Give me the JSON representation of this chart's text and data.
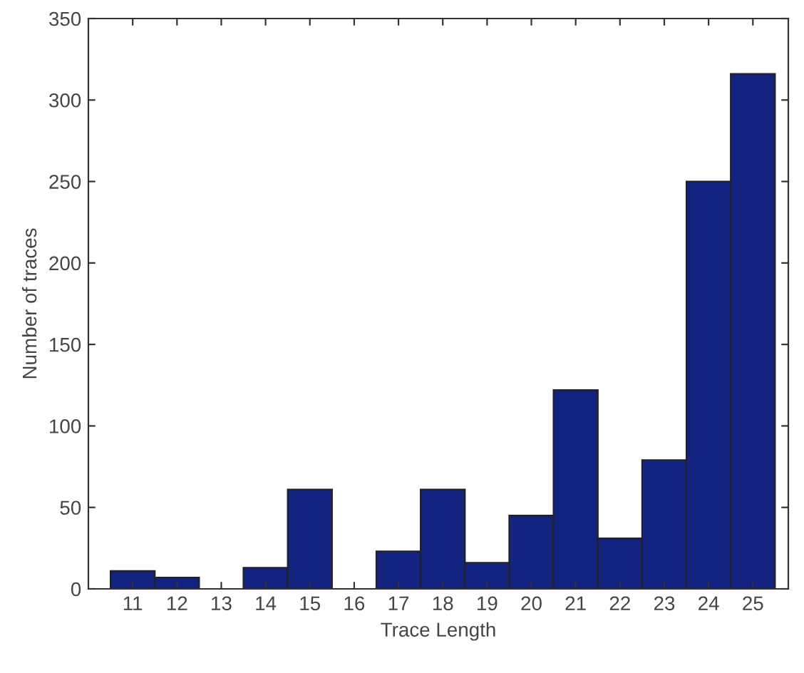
{
  "chart_data": {
    "type": "bar",
    "xlabel": "Trace Length",
    "ylabel": "Number of traces",
    "categories": [
      "11",
      "12",
      "13",
      "14",
      "15",
      "16",
      "17",
      "18",
      "19",
      "20",
      "21",
      "22",
      "23",
      "24",
      "25"
    ],
    "values": [
      11,
      7,
      0,
      13,
      61,
      0,
      23,
      61,
      16,
      45,
      122,
      31,
      79,
      250,
      316
    ],
    "color": "#13237f",
    "ylim": [
      0,
      350
    ],
    "yticks": [
      0,
      50,
      100,
      150,
      200,
      250,
      300,
      350
    ],
    "grid": false,
    "legend": false
  }
}
